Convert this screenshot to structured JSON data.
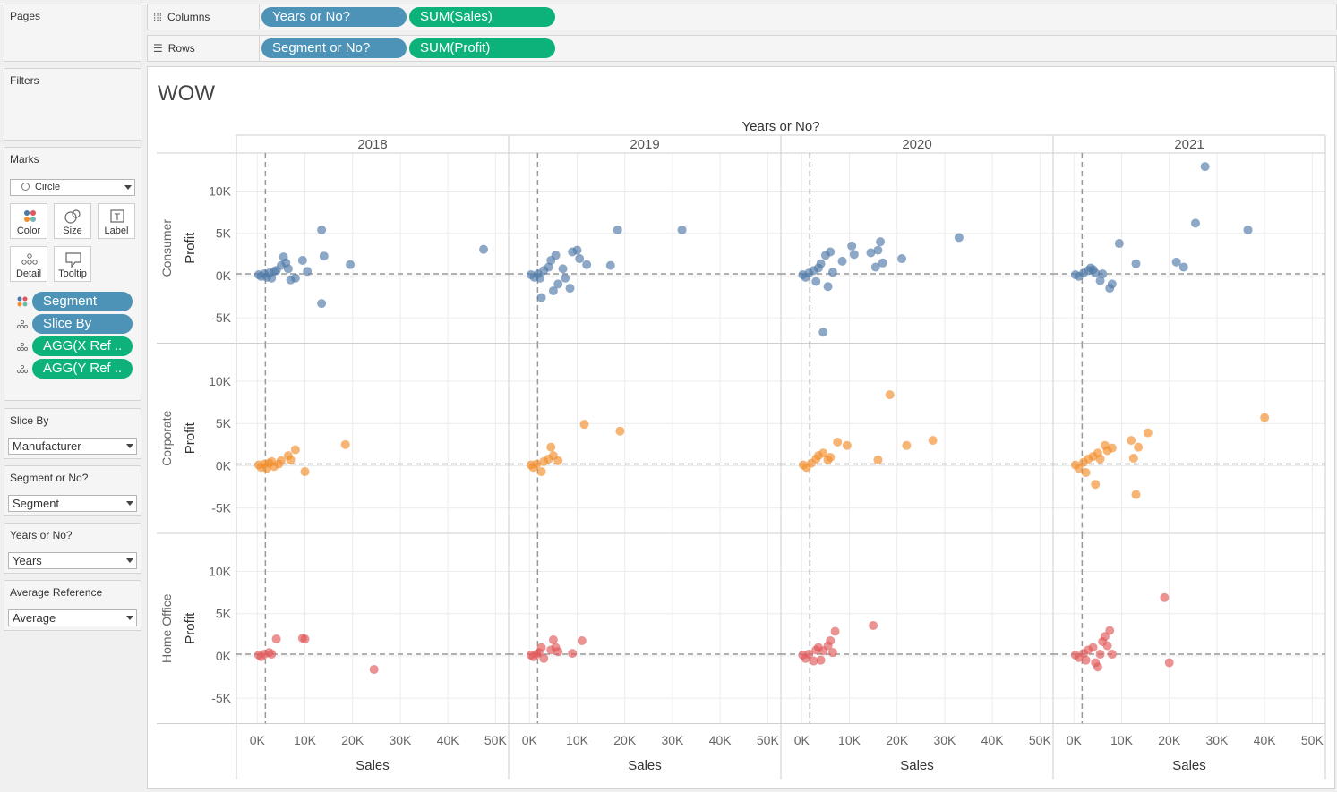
{
  "shelves": {
    "columns": {
      "label": "Columns",
      "pills": [
        "Years or No?",
        "SUM(Sales)"
      ]
    },
    "rows": {
      "label": "Rows",
      "pills": [
        "Segment or No?",
        "SUM(Profit)"
      ]
    }
  },
  "sidebar": {
    "pages": {
      "title": "Pages"
    },
    "filters": {
      "title": "Filters"
    },
    "marks": {
      "title": "Marks",
      "mark_type": "Circle",
      "buttons": {
        "color": "Color",
        "size": "Size",
        "label": "Label",
        "detail": "Detail",
        "tooltip": "Tooltip"
      },
      "pills": [
        "Segment",
        "Slice By",
        "AGG(X Ref ..",
        "AGG(Y Ref .."
      ]
    },
    "params": [
      {
        "title": "Slice By",
        "value": "Manufacturer"
      },
      {
        "title": "Segment or No?",
        "value": "Segment"
      },
      {
        "title": "Years or No?",
        "value": "Years"
      },
      {
        "title": "Average Reference",
        "value": "Average"
      }
    ]
  },
  "viz": {
    "title": "WOW",
    "column_header": "Years or No?",
    "row_axis_title": "Profit",
    "col_axis_title": "Sales",
    "colors": {
      "Consumer": "#4e79a7",
      "Corporate": "#f28e2b",
      "Home Office": "#e15759"
    }
  },
  "chart_data": {
    "type": "scatter",
    "title": "WOW",
    "columns_field": "Years or No?",
    "rows_field": "Segment",
    "xlabel": "Sales",
    "ylabel": "Profit",
    "years": [
      "2018",
      "2019",
      "2020",
      "2021"
    ],
    "segments": [
      "Consumer",
      "Corporate",
      "Home Office"
    ],
    "x_ticks": [
      "0K",
      "10K",
      "20K",
      "30K",
      "40K",
      "50K"
    ],
    "y_ticks": [
      "10K",
      "5K",
      "0K",
      "-5K"
    ],
    "xlim": [
      -2500,
      52000
    ],
    "ylim": [
      -8000,
      14500
    ],
    "grid": true,
    "reference_lines": {
      "x_avg": 1700,
      "y_avg": 200
    },
    "panels": [
      {
        "segment": "Consumer",
        "year": "2018",
        "points": [
          [
            300,
            100
          ],
          [
            800,
            -100
          ],
          [
            1500,
            200
          ],
          [
            2000,
            -200
          ],
          [
            2500,
            300
          ],
          [
            3000,
            -300
          ],
          [
            3500,
            500
          ],
          [
            4000,
            600
          ],
          [
            5000,
            1200
          ],
          [
            5500,
            2200
          ],
          [
            6000,
            1500
          ],
          [
            6500,
            800
          ],
          [
            7000,
            -500
          ],
          [
            8000,
            -300
          ],
          [
            9500,
            1800
          ],
          [
            10500,
            500
          ],
          [
            13500,
            5400
          ],
          [
            14000,
            2300
          ],
          [
            13500,
            -3300
          ],
          [
            19500,
            1300
          ],
          [
            47500,
            3100
          ]
        ]
      },
      {
        "segment": "Consumer",
        "year": "2019",
        "points": [
          [
            300,
            100
          ],
          [
            1000,
            -200
          ],
          [
            1800,
            200
          ],
          [
            2200,
            -300
          ],
          [
            2500,
            -2600
          ],
          [
            3000,
            600
          ],
          [
            4000,
            1000
          ],
          [
            4500,
            1800
          ],
          [
            5000,
            -1800
          ],
          [
            5500,
            2400
          ],
          [
            6000,
            -1000
          ],
          [
            7000,
            800
          ],
          [
            7500,
            -300
          ],
          [
            8500,
            -1500
          ],
          [
            9000,
            2800
          ],
          [
            10000,
            3000
          ],
          [
            10500,
            2000
          ],
          [
            12000,
            1300
          ],
          [
            17000,
            1200
          ],
          [
            18500,
            5400
          ],
          [
            32000,
            5400
          ]
        ]
      },
      {
        "segment": "Consumer",
        "year": "2020",
        "points": [
          [
            200,
            100
          ],
          [
            800,
            -200
          ],
          [
            1500,
            300
          ],
          [
            2500,
            600
          ],
          [
            3000,
            -700
          ],
          [
            3500,
            900
          ],
          [
            4000,
            1400
          ],
          [
            4500,
            -6700
          ],
          [
            5000,
            2400
          ],
          [
            5500,
            -1300
          ],
          [
            6000,
            2800
          ],
          [
            6500,
            400
          ],
          [
            8500,
            1700
          ],
          [
            10500,
            3500
          ],
          [
            11000,
            2500
          ],
          [
            14500,
            2700
          ],
          [
            15500,
            1000
          ],
          [
            16000,
            3000
          ],
          [
            16500,
            4000
          ],
          [
            17000,
            1500
          ],
          [
            21000,
            2000
          ],
          [
            33000,
            4500
          ]
        ]
      },
      {
        "segment": "Consumer",
        "year": "2021",
        "points": [
          [
            300,
            100
          ],
          [
            1000,
            -100
          ],
          [
            2000,
            300
          ],
          [
            3000,
            600
          ],
          [
            3500,
            900
          ],
          [
            4000,
            700
          ],
          [
            4500,
            300
          ],
          [
            5500,
            -600
          ],
          [
            6000,
            200
          ],
          [
            7500,
            -1500
          ],
          [
            8000,
            -1000
          ],
          [
            9500,
            3800
          ],
          [
            13000,
            1400
          ],
          [
            21500,
            1600
          ],
          [
            23000,
            1000
          ],
          [
            25500,
            6200
          ],
          [
            27500,
            12900
          ],
          [
            36500,
            5400
          ]
        ]
      },
      {
        "segment": "Corporate",
        "year": "2018",
        "points": [
          [
            300,
            100
          ],
          [
            800,
            -200
          ],
          [
            1500,
            200
          ],
          [
            2000,
            -300
          ],
          [
            2500,
            300
          ],
          [
            3000,
            500
          ],
          [
            3500,
            -100
          ],
          [
            4500,
            200
          ],
          [
            5000,
            600
          ],
          [
            6500,
            1200
          ],
          [
            7000,
            700
          ],
          [
            8000,
            1900
          ],
          [
            10000,
            -700
          ],
          [
            18500,
            2500
          ]
        ]
      },
      {
        "segment": "Corporate",
        "year": "2019",
        "points": [
          [
            300,
            100
          ],
          [
            800,
            -200
          ],
          [
            1500,
            200
          ],
          [
            2500,
            -700
          ],
          [
            3000,
            500
          ],
          [
            4000,
            800
          ],
          [
            4500,
            2200
          ],
          [
            5000,
            1200
          ],
          [
            6000,
            600
          ],
          [
            11500,
            4900
          ],
          [
            19000,
            4100
          ]
        ]
      },
      {
        "segment": "Corporate",
        "year": "2020",
        "points": [
          [
            300,
            100
          ],
          [
            1000,
            -200
          ],
          [
            2000,
            300
          ],
          [
            3000,
            800
          ],
          [
            3500,
            1200
          ],
          [
            4500,
            1500
          ],
          [
            5500,
            700
          ],
          [
            6000,
            1000
          ],
          [
            7500,
            2800
          ],
          [
            9500,
            2400
          ],
          [
            16000,
            700
          ],
          [
            18500,
            8400
          ],
          [
            22000,
            2400
          ],
          [
            27500,
            3000
          ]
        ]
      },
      {
        "segment": "Corporate",
        "year": "2021",
        "points": [
          [
            300,
            100
          ],
          [
            1000,
            -300
          ],
          [
            2000,
            400
          ],
          [
            2500,
            -800
          ],
          [
            3000,
            800
          ],
          [
            4000,
            1100
          ],
          [
            4500,
            -2200
          ],
          [
            5000,
            1500
          ],
          [
            5500,
            800
          ],
          [
            6500,
            2400
          ],
          [
            7000,
            1800
          ],
          [
            8000,
            2100
          ],
          [
            12000,
            3000
          ],
          [
            12500,
            900
          ],
          [
            13000,
            -3400
          ],
          [
            13500,
            2200
          ],
          [
            15500,
            3900
          ],
          [
            40000,
            5700
          ]
        ]
      },
      {
        "segment": "Home Office",
        "year": "2018",
        "points": [
          [
            300,
            100
          ],
          [
            800,
            -100
          ],
          [
            1500,
            200
          ],
          [
            2500,
            400
          ],
          [
            3000,
            200
          ],
          [
            4000,
            2000
          ],
          [
            9500,
            2100
          ],
          [
            10000,
            2000
          ],
          [
            24500,
            -1600
          ]
        ]
      },
      {
        "segment": "Home Office",
        "year": "2019",
        "points": [
          [
            300,
            100
          ],
          [
            800,
            -100
          ],
          [
            1500,
            200
          ],
          [
            2000,
            400
          ],
          [
            2500,
            1000
          ],
          [
            3000,
            -300
          ],
          [
            4500,
            700
          ],
          [
            5000,
            1900
          ],
          [
            5500,
            1000
          ],
          [
            6000,
            500
          ],
          [
            9000,
            300
          ],
          [
            11000,
            1800
          ]
        ]
      },
      {
        "segment": "Home Office",
        "year": "2020",
        "points": [
          [
            200,
            100
          ],
          [
            800,
            -300
          ],
          [
            1500,
            200
          ],
          [
            2500,
            -600
          ],
          [
            3000,
            700
          ],
          [
            3500,
            1000
          ],
          [
            4000,
            -500
          ],
          [
            4500,
            600
          ],
          [
            5500,
            1200
          ],
          [
            6000,
            1800
          ],
          [
            6500,
            400
          ],
          [
            7000,
            2900
          ],
          [
            15000,
            3600
          ]
        ]
      },
      {
        "segment": "Home Office",
        "year": "2021",
        "points": [
          [
            300,
            100
          ],
          [
            1000,
            -200
          ],
          [
            2000,
            300
          ],
          [
            2500,
            -500
          ],
          [
            3000,
            700
          ],
          [
            4000,
            1000
          ],
          [
            4500,
            -800
          ],
          [
            5000,
            -1300
          ],
          [
            5500,
            200
          ],
          [
            6000,
            1700
          ],
          [
            6500,
            2300
          ],
          [
            7000,
            1200
          ],
          [
            7500,
            3000
          ],
          [
            8000,
            200
          ],
          [
            19000,
            6900
          ],
          [
            20000,
            -800
          ]
        ]
      }
    ]
  }
}
